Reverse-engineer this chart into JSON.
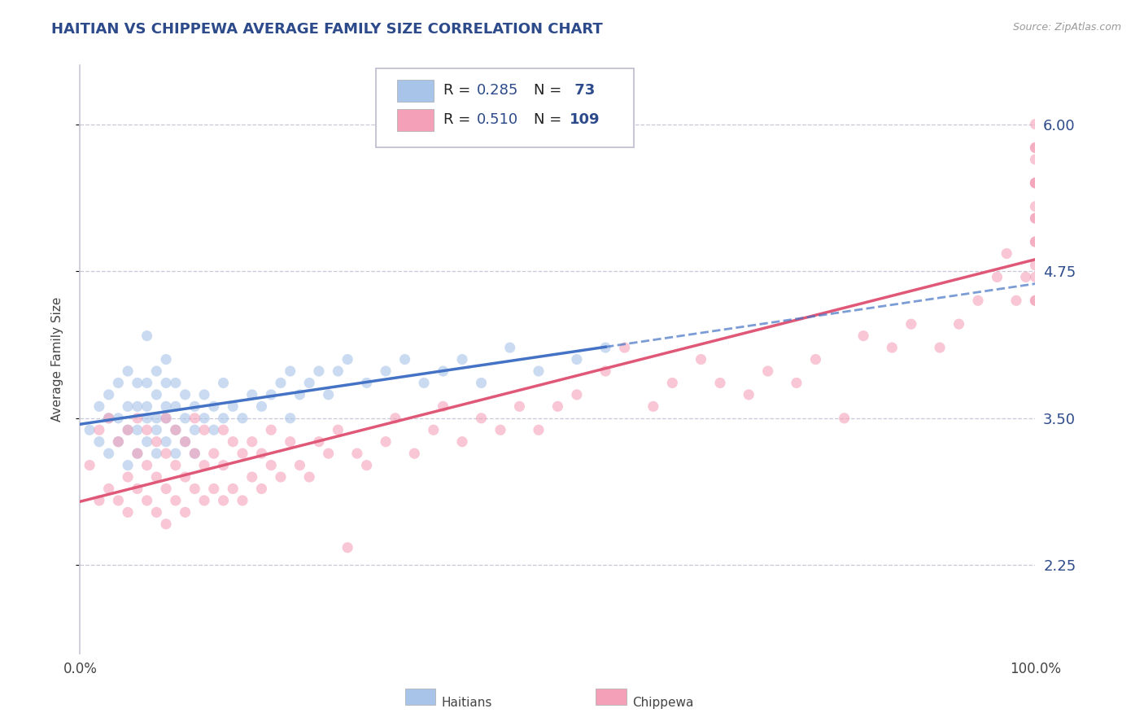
{
  "title": "HAITIAN VS CHIPPEWA AVERAGE FAMILY SIZE CORRELATION CHART",
  "source": "Source: ZipAtlas.com",
  "ylabel": "Average Family Size",
  "xlim": [
    0,
    100
  ],
  "ylim": [
    1.5,
    6.5
  ],
  "yticks": [
    2.25,
    3.5,
    4.75,
    6.0
  ],
  "title_color": "#2d4a8a",
  "title_fontsize": 13,
  "right_ytick_color": "#2d4a8a",
  "grid_color": "#c8c8d8",
  "background_color": "#ffffff",
  "series": [
    {
      "name": "Haitians",
      "R": 0.285,
      "N": 73,
      "color": "#a8c4e8",
      "line_color": "#4472c4",
      "line_style": "-",
      "scatter_alpha": 0.6,
      "marker_size": 90
    },
    {
      "name": "Chippewa",
      "R": 0.51,
      "N": 109,
      "color": "#f4a0b8",
      "line_color": "#e05878",
      "line_style": "-",
      "scatter_alpha": 0.6,
      "marker_size": 90
    }
  ],
  "haitians_x": [
    1,
    2,
    2,
    3,
    3,
    3,
    4,
    4,
    4,
    5,
    5,
    5,
    5,
    6,
    6,
    6,
    6,
    7,
    7,
    7,
    7,
    7,
    8,
    8,
    8,
    8,
    8,
    9,
    9,
    9,
    9,
    9,
    10,
    10,
    10,
    10,
    11,
    11,
    11,
    12,
    12,
    12,
    13,
    13,
    14,
    14,
    15,
    15,
    16,
    17,
    18,
    19,
    20,
    21,
    22,
    22,
    23,
    24,
    25,
    26,
    27,
    28,
    30,
    32,
    34,
    36,
    38,
    40,
    42,
    45,
    48,
    52,
    55
  ],
  "haitians_y": [
    3.4,
    3.3,
    3.6,
    3.2,
    3.5,
    3.7,
    3.3,
    3.5,
    3.8,
    3.1,
    3.4,
    3.6,
    3.9,
    3.2,
    3.4,
    3.6,
    3.8,
    3.3,
    3.5,
    3.6,
    3.8,
    4.2,
    3.2,
    3.4,
    3.5,
    3.7,
    3.9,
    3.3,
    3.5,
    3.6,
    3.8,
    4.0,
    3.2,
    3.4,
    3.6,
    3.8,
    3.3,
    3.5,
    3.7,
    3.2,
    3.4,
    3.6,
    3.5,
    3.7,
    3.4,
    3.6,
    3.5,
    3.8,
    3.6,
    3.5,
    3.7,
    3.6,
    3.7,
    3.8,
    3.5,
    3.9,
    3.7,
    3.8,
    3.9,
    3.7,
    3.9,
    4.0,
    3.8,
    3.9,
    4.0,
    3.8,
    3.9,
    4.0,
    3.8,
    4.1,
    3.9,
    4.0,
    4.1
  ],
  "chippewa_x": [
    1,
    2,
    2,
    3,
    3,
    4,
    4,
    5,
    5,
    5,
    6,
    6,
    6,
    7,
    7,
    7,
    8,
    8,
    8,
    9,
    9,
    9,
    9,
    10,
    10,
    10,
    11,
    11,
    11,
    12,
    12,
    12,
    13,
    13,
    13,
    14,
    14,
    15,
    15,
    15,
    16,
    16,
    17,
    17,
    18,
    18,
    19,
    19,
    20,
    20,
    21,
    22,
    23,
    24,
    25,
    26,
    27,
    28,
    29,
    30,
    32,
    33,
    35,
    37,
    38,
    40,
    42,
    44,
    46,
    48,
    50,
    52,
    55,
    57,
    60,
    62,
    65,
    67,
    70,
    72,
    75,
    77,
    80,
    82,
    85,
    87,
    90,
    92,
    94,
    96,
    97,
    98,
    99,
    100,
    100,
    100,
    100,
    100,
    100,
    100,
    100,
    100,
    100,
    100,
    100,
    100,
    100,
    100,
    100
  ],
  "chippewa_y": [
    3.1,
    2.8,
    3.4,
    2.9,
    3.5,
    2.8,
    3.3,
    3.0,
    3.4,
    2.7,
    2.9,
    3.2,
    3.5,
    2.8,
    3.1,
    3.4,
    2.7,
    3.0,
    3.3,
    2.6,
    2.9,
    3.2,
    3.5,
    2.8,
    3.1,
    3.4,
    2.7,
    3.0,
    3.3,
    2.9,
    3.2,
    3.5,
    2.8,
    3.1,
    3.4,
    2.9,
    3.2,
    2.8,
    3.1,
    3.4,
    2.9,
    3.3,
    2.8,
    3.2,
    3.0,
    3.3,
    2.9,
    3.2,
    3.1,
    3.4,
    3.0,
    3.3,
    3.1,
    3.0,
    3.3,
    3.2,
    3.4,
    2.4,
    3.2,
    3.1,
    3.3,
    3.5,
    3.2,
    3.4,
    3.6,
    3.3,
    3.5,
    3.4,
    3.6,
    3.4,
    3.6,
    3.7,
    3.9,
    4.1,
    3.6,
    3.8,
    4.0,
    3.8,
    3.7,
    3.9,
    3.8,
    4.0,
    3.5,
    4.2,
    4.1,
    4.3,
    4.1,
    4.3,
    4.5,
    4.7,
    4.9,
    4.5,
    4.7,
    4.5,
    4.7,
    5.0,
    5.2,
    5.5,
    5.8,
    5.0,
    5.3,
    5.5,
    5.8,
    6.0,
    5.7,
    5.2,
    4.8,
    4.5,
    5.5
  ]
}
